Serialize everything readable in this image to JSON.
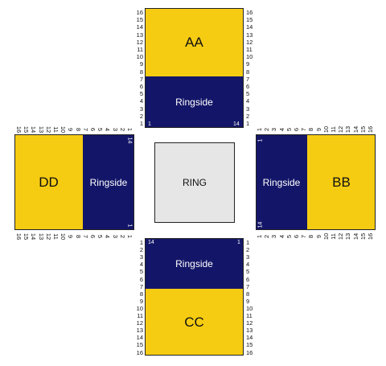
{
  "sections": {
    "aa": {
      "name": "AA",
      "ringside": "Ringside",
      "seat_first": "1",
      "seat_last": "14"
    },
    "bb": {
      "name": "BB",
      "ringside": "Ringside",
      "seat_first": "1",
      "seat_last": "14"
    },
    "cc": {
      "name": "CC",
      "ringside": "Ringside",
      "seat_first": "1",
      "seat_last": "14"
    },
    "dd": {
      "name": "DD",
      "ringside": "Ringside",
      "seat_first": "1",
      "seat_last": "14"
    }
  },
  "ring": {
    "label": "RING"
  },
  "row_numbers": [
    "1",
    "2",
    "3",
    "4",
    "5",
    "6",
    "7",
    "8",
    "9",
    "10",
    "11",
    "12",
    "13",
    "14",
    "15",
    "16"
  ],
  "colors": {
    "general": "#f6cc12",
    "ringside": "#131668",
    "ring": "#e6e6e6"
  }
}
